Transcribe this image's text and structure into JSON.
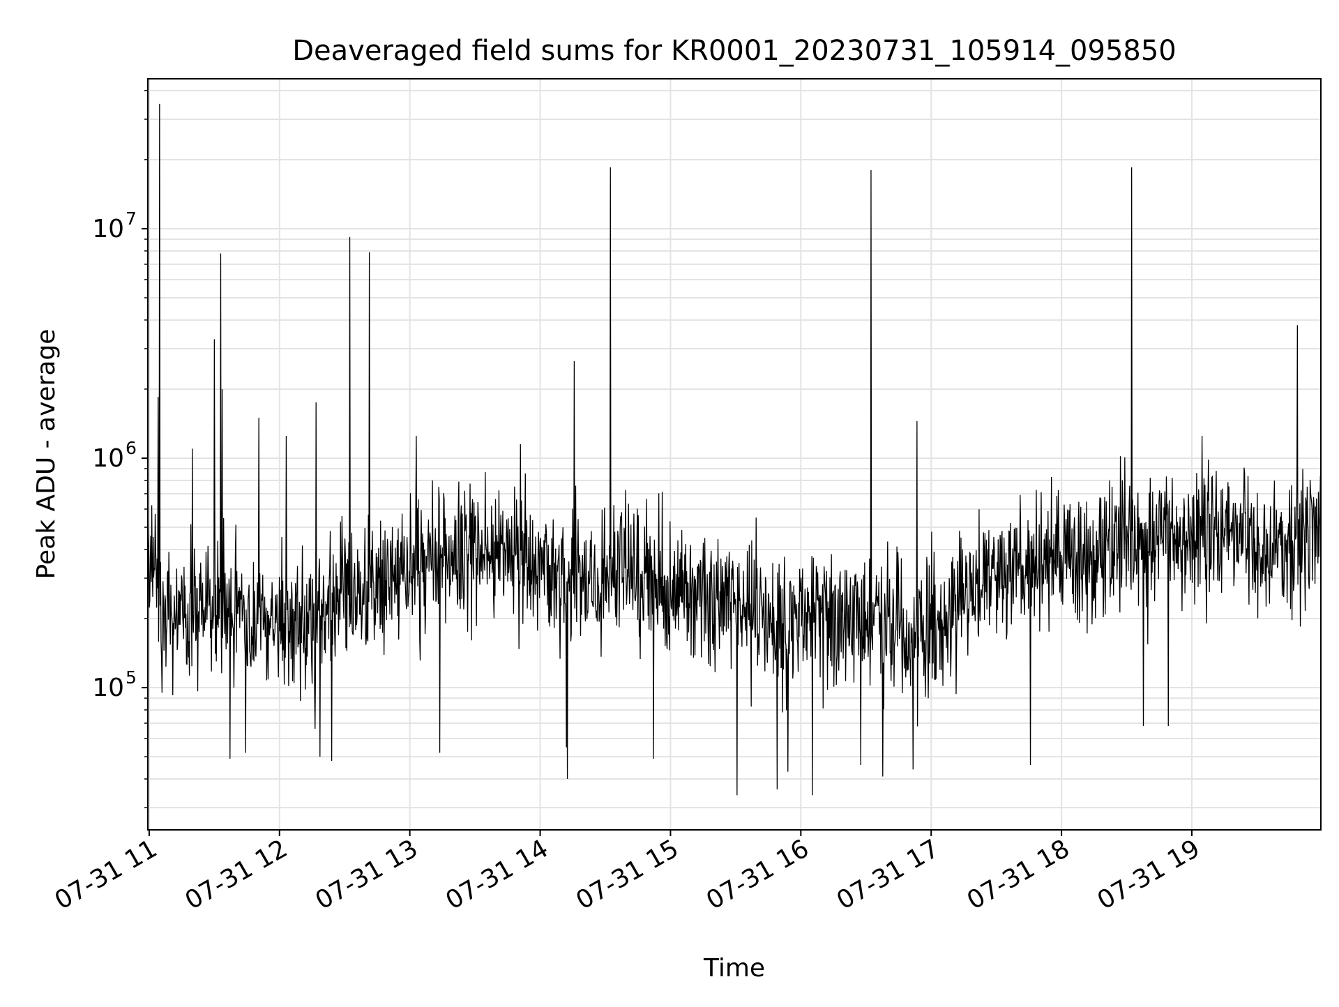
{
  "chart_data": {
    "type": "line",
    "title": "Deaveraged field sums for KR0001_20230731_105914_095850",
    "xlabel": "Time",
    "ylabel": "Peak ADU - average",
    "x_unit": "hours (clock time on 2023-07-31)",
    "x_range": [
      "07-31 10:59",
      "07-31 19:59"
    ],
    "y_scale": "log",
    "y_range": [
      24000,
      45000000
    ],
    "x_ticks": [
      {
        "value": 11,
        "label": "07-31 11"
      },
      {
        "value": 12,
        "label": "07-31 12"
      },
      {
        "value": 13,
        "label": "07-31 13"
      },
      {
        "value": 14,
        "label": "07-31 14"
      },
      {
        "value": 15,
        "label": "07-31 15"
      },
      {
        "value": 16,
        "label": "07-31 16"
      },
      {
        "value": 17,
        "label": "07-31 17"
      },
      {
        "value": 18,
        "label": "07-31 18"
      },
      {
        "value": 19,
        "label": "07-31 19"
      }
    ],
    "y_ticks": [
      {
        "value": 100000,
        "base": "10",
        "exp": "5"
      },
      {
        "value": 1000000,
        "base": "10",
        "exp": "6"
      },
      {
        "value": 10000000,
        "base": "10",
        "exp": "7"
      }
    ],
    "grid": true,
    "grid_minor_y": true,
    "line_color": "#000000",
    "baseline": [
      [
        10.99,
        400000
      ],
      [
        11.1,
        230000
      ],
      [
        11.3,
        190000
      ],
      [
        11.5,
        230000
      ],
      [
        11.7,
        210000
      ],
      [
        11.9,
        200000
      ],
      [
        12.1,
        190000
      ],
      [
        12.3,
        200000
      ],
      [
        12.5,
        230000
      ],
      [
        12.7,
        270000
      ],
      [
        12.9,
        320000
      ],
      [
        13.1,
        350000
      ],
      [
        13.3,
        370000
      ],
      [
        13.5,
        400000
      ],
      [
        13.7,
        390000
      ],
      [
        13.9,
        340000
      ],
      [
        14.1,
        310000
      ],
      [
        14.3,
        300000
      ],
      [
        14.5,
        300000
      ],
      [
        14.7,
        300000
      ],
      [
        14.9,
        280000
      ],
      [
        15.1,
        260000
      ],
      [
        15.3,
        240000
      ],
      [
        15.5,
        220000
      ],
      [
        15.7,
        210000
      ],
      [
        15.9,
        200000
      ],
      [
        16.1,
        210000
      ],
      [
        16.3,
        210000
      ],
      [
        16.5,
        200000
      ],
      [
        16.7,
        190000
      ],
      [
        16.9,
        180000
      ],
      [
        17.1,
        200000
      ],
      [
        17.3,
        270000
      ],
      [
        17.5,
        310000
      ],
      [
        17.7,
        330000
      ],
      [
        17.9,
        350000
      ],
      [
        18.1,
        370000
      ],
      [
        18.3,
        390000
      ],
      [
        18.5,
        420000
      ],
      [
        18.7,
        450000
      ],
      [
        18.9,
        470000
      ],
      [
        19.1,
        460000
      ],
      [
        19.3,
        440000
      ],
      [
        19.5,
        430000
      ],
      [
        19.7,
        420000
      ],
      [
        19.9,
        470000
      ],
      [
        19.99,
        550000
      ]
    ],
    "spikes": [
      {
        "x": 11.08,
        "y": 35000000
      },
      {
        "x": 11.07,
        "y": 1850000
      },
      {
        "x": 11.33,
        "y": 1100000
      },
      {
        "x": 11.5,
        "y": 3300000
      },
      {
        "x": 11.55,
        "y": 7800000
      },
      {
        "x": 11.56,
        "y": 2000000
      },
      {
        "x": 11.84,
        "y": 1500000
      },
      {
        "x": 12.05,
        "y": 1250000
      },
      {
        "x": 12.28,
        "y": 1750000
      },
      {
        "x": 12.54,
        "y": 9200000
      },
      {
        "x": 12.69,
        "y": 7900000
      },
      {
        "x": 13.05,
        "y": 1250000
      },
      {
        "x": 13.85,
        "y": 1150000
      },
      {
        "x": 14.26,
        "y": 2650000
      },
      {
        "x": 14.54,
        "y": 18500000
      },
      {
        "x": 16.54,
        "y": 18000000
      },
      {
        "x": 16.89,
        "y": 1450000
      },
      {
        "x": 18.54,
        "y": 18500000
      },
      {
        "x": 19.81,
        "y": 3800000
      },
      {
        "x": 19.08,
        "y": 1250000
      }
    ],
    "dips": [
      {
        "x": 11.1,
        "y": 95000
      },
      {
        "x": 11.62,
        "y": 49000
      },
      {
        "x": 11.74,
        "y": 52000
      },
      {
        "x": 12.31,
        "y": 50000
      },
      {
        "x": 12.4,
        "y": 48000
      },
      {
        "x": 13.23,
        "y": 52000
      },
      {
        "x": 14.2,
        "y": 55000
      },
      {
        "x": 14.21,
        "y": 40000
      },
      {
        "x": 14.87,
        "y": 49000
      },
      {
        "x": 15.51,
        "y": 34000
      },
      {
        "x": 15.82,
        "y": 36000
      },
      {
        "x": 15.9,
        "y": 43000
      },
      {
        "x": 16.09,
        "y": 34000
      },
      {
        "x": 16.46,
        "y": 46000
      },
      {
        "x": 16.63,
        "y": 41000
      },
      {
        "x": 16.86,
        "y": 44000
      },
      {
        "x": 17.76,
        "y": 46000
      },
      {
        "x": 18.63,
        "y": 68000
      },
      {
        "x": 18.82,
        "y": 68000
      }
    ]
  }
}
